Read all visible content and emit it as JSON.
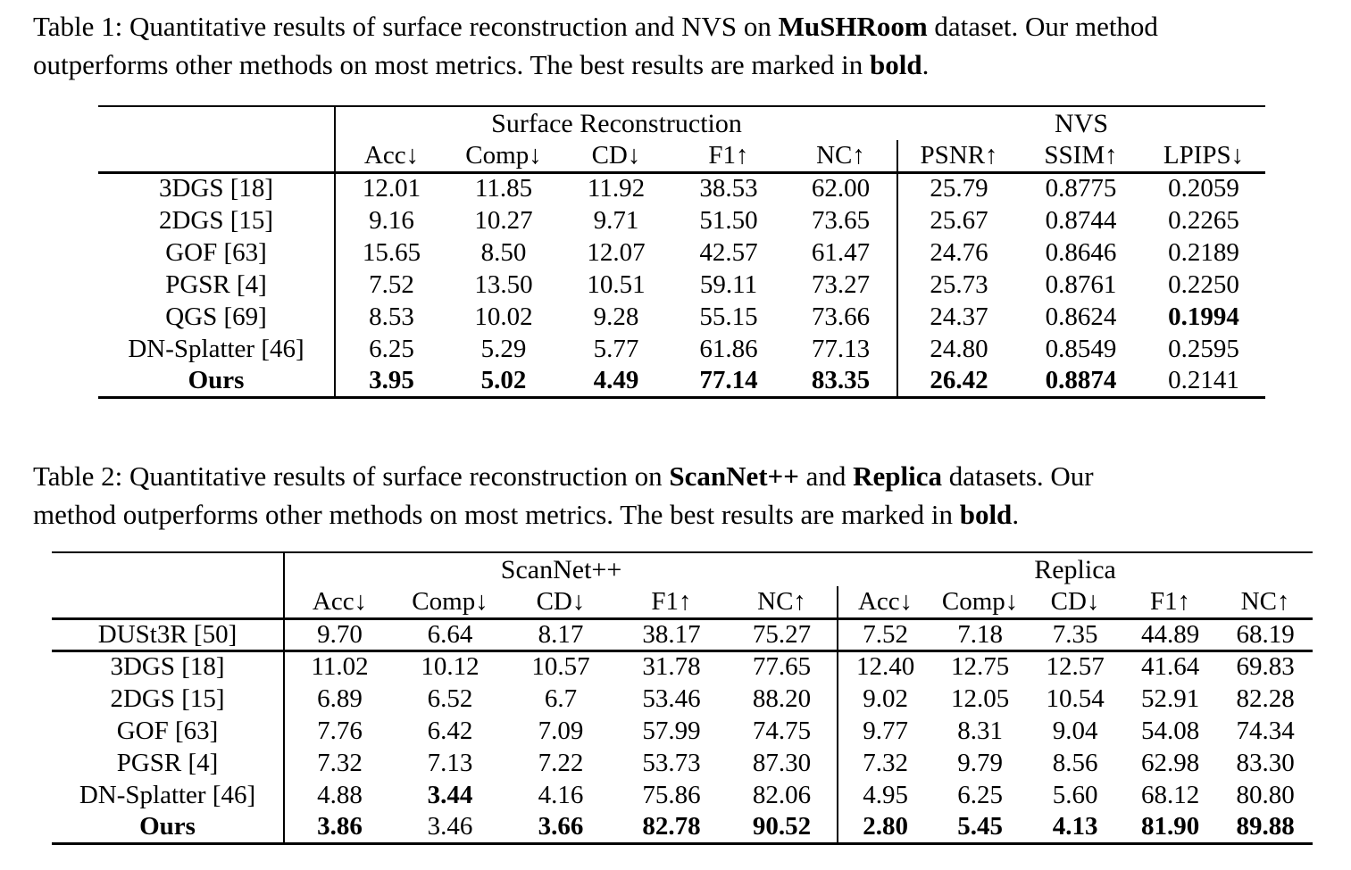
{
  "page": {
    "background": "#ffffff",
    "text_color": "#000000"
  },
  "captions": {
    "table1": {
      "lines": [
        [
          {
            "t": "Table 1: Quantitative results of surface reconstruction and NVS on ",
            "b": false
          },
          {
            "t": "MuSHRoom",
            "b": true
          },
          {
            "t": " dataset. Our method",
            "b": false
          }
        ],
        [
          {
            "t": "outperforms other methods on most metrics. The best results are marked in ",
            "b": false
          },
          {
            "t": "bold",
            "b": true
          },
          {
            "t": ".",
            "b": false
          }
        ]
      ]
    },
    "table2": {
      "lines": [
        [
          {
            "t": "Table 2: Quantitative results of surface reconstruction on ",
            "b": false
          },
          {
            "t": "ScanNet++",
            "b": true
          },
          {
            "t": " and ",
            "b": false
          },
          {
            "t": "Replica",
            "b": true
          },
          {
            "t": " datasets. Our",
            "b": false
          }
        ],
        [
          {
            "t": "method outperforms other methods on most metrics. The best results are marked in ",
            "b": false
          },
          {
            "t": "bold",
            "b": true
          },
          {
            "t": ".",
            "b": false
          }
        ]
      ]
    }
  },
  "tables": {
    "table1": {
      "groups": [
        {
          "label": "",
          "span": 1
        },
        {
          "label": "Surface Reconstruction",
          "span": 5
        },
        {
          "label": "NVS",
          "span": 3
        }
      ],
      "columns": [
        "",
        "Acc↓",
        "Comp↓",
        "CD↓",
        "F1↑",
        "NC↑",
        "PSNR↑",
        "SSIM↑",
        "LPIPS↓"
      ],
      "group_divider_col": 6,
      "rows": [
        {
          "method": "3DGS [18]",
          "method_bold": false,
          "separator_after": false,
          "values": [
            "12.01",
            "11.85",
            "11.92",
            "38.53",
            "62.00",
            "25.79",
            "0.8775",
            "0.2059"
          ],
          "bold": [
            0,
            0,
            0,
            0,
            0,
            0,
            0,
            0
          ]
        },
        {
          "method": "2DGS [15]",
          "method_bold": false,
          "separator_after": false,
          "values": [
            "9.16",
            "10.27",
            "9.71",
            "51.50",
            "73.65",
            "25.67",
            "0.8744",
            "0.2265"
          ],
          "bold": [
            0,
            0,
            0,
            0,
            0,
            0,
            0,
            0
          ]
        },
        {
          "method": "GOF [63]",
          "method_bold": false,
          "separator_after": false,
          "values": [
            "15.65",
            "8.50",
            "12.07",
            "42.57",
            "61.47",
            "24.76",
            "0.8646",
            "0.2189"
          ],
          "bold": [
            0,
            0,
            0,
            0,
            0,
            0,
            0,
            0
          ]
        },
        {
          "method": "PGSR [4]",
          "method_bold": false,
          "separator_after": false,
          "values": [
            "7.52",
            "13.50",
            "10.51",
            "59.11",
            "73.27",
            "25.73",
            "0.8761",
            "0.2250"
          ],
          "bold": [
            0,
            0,
            0,
            0,
            0,
            0,
            0,
            0
          ]
        },
        {
          "method": "QGS [69]",
          "method_bold": false,
          "separator_after": false,
          "values": [
            "8.53",
            "10.02",
            "9.28",
            "55.15",
            "73.66",
            "24.37",
            "0.8624",
            "0.1994"
          ],
          "bold": [
            0,
            0,
            0,
            0,
            0,
            0,
            0,
            1
          ]
        },
        {
          "method": "DN-Splatter [46]",
          "method_bold": false,
          "separator_after": false,
          "values": [
            "6.25",
            "5.29",
            "5.77",
            "61.86",
            "77.13",
            "24.80",
            "0.8549",
            "0.2595"
          ],
          "bold": [
            0,
            0,
            0,
            0,
            0,
            0,
            0,
            0
          ]
        },
        {
          "method": "Ours",
          "method_bold": true,
          "separator_after": false,
          "values": [
            "3.95",
            "5.02",
            "4.49",
            "77.14",
            "83.35",
            "26.42",
            "0.8874",
            "0.2141"
          ],
          "bold": [
            1,
            1,
            1,
            1,
            1,
            1,
            1,
            0
          ]
        }
      ]
    },
    "table2": {
      "groups": [
        {
          "label": "",
          "span": 1
        },
        {
          "label": "ScanNet++",
          "span": 5
        },
        {
          "label": "Replica",
          "span": 5
        }
      ],
      "columns": [
        "",
        "Acc↓",
        "Comp↓",
        "CD↓",
        "F1↑",
        "NC↑",
        "Acc↓",
        "Comp↓",
        "CD↓",
        "F1↑",
        "NC↑"
      ],
      "group_divider_col": 6,
      "rows": [
        {
          "method": "DUSt3R [50]",
          "method_bold": false,
          "separator_after": true,
          "values": [
            "9.70",
            "6.64",
            "8.17",
            "38.17",
            "75.27",
            "7.52",
            "7.18",
            "7.35",
            "44.89",
            "68.19"
          ],
          "bold": [
            0,
            0,
            0,
            0,
            0,
            0,
            0,
            0,
            0,
            0
          ]
        },
        {
          "method": "3DGS [18]",
          "method_bold": false,
          "separator_after": false,
          "values": [
            "11.02",
            "10.12",
            "10.57",
            "31.78",
            "77.65",
            "12.40",
            "12.75",
            "12.57",
            "41.64",
            "69.83"
          ],
          "bold": [
            0,
            0,
            0,
            0,
            0,
            0,
            0,
            0,
            0,
            0
          ]
        },
        {
          "method": "2DGS [15]",
          "method_bold": false,
          "separator_after": false,
          "values": [
            "6.89",
            "6.52",
            "6.7",
            "53.46",
            "88.20",
            "9.02",
            "12.05",
            "10.54",
            "52.91",
            "82.28"
          ],
          "bold": [
            0,
            0,
            0,
            0,
            0,
            0,
            0,
            0,
            0,
            0
          ]
        },
        {
          "method": "GOF [63]",
          "method_bold": false,
          "separator_after": false,
          "values": [
            "7.76",
            "6.42",
            "7.09",
            "57.99",
            "74.75",
            "9.77",
            "8.31",
            "9.04",
            "54.08",
            "74.34"
          ],
          "bold": [
            0,
            0,
            0,
            0,
            0,
            0,
            0,
            0,
            0,
            0
          ]
        },
        {
          "method": "PGSR [4]",
          "method_bold": false,
          "separator_after": false,
          "values": [
            "7.32",
            "7.13",
            "7.22",
            "53.73",
            "87.30",
            "7.32",
            "9.79",
            "8.56",
            "62.98",
            "83.30"
          ],
          "bold": [
            0,
            0,
            0,
            0,
            0,
            0,
            0,
            0,
            0,
            0
          ]
        },
        {
          "method": "DN-Splatter [46]",
          "method_bold": false,
          "separator_after": false,
          "values": [
            "4.88",
            "3.44",
            "4.16",
            "75.86",
            "82.06",
            "4.95",
            "6.25",
            "5.60",
            "68.12",
            "80.80"
          ],
          "bold": [
            0,
            1,
            0,
            0,
            0,
            0,
            0,
            0,
            0,
            0
          ]
        },
        {
          "method": "Ours",
          "method_bold": true,
          "separator_after": false,
          "values": [
            "3.86",
            "3.46",
            "3.66",
            "82.78",
            "90.52",
            "2.80",
            "5.45",
            "4.13",
            "81.90",
            "89.88"
          ],
          "bold": [
            1,
            0,
            1,
            1,
            1,
            1,
            1,
            1,
            1,
            1
          ]
        }
      ]
    }
  }
}
